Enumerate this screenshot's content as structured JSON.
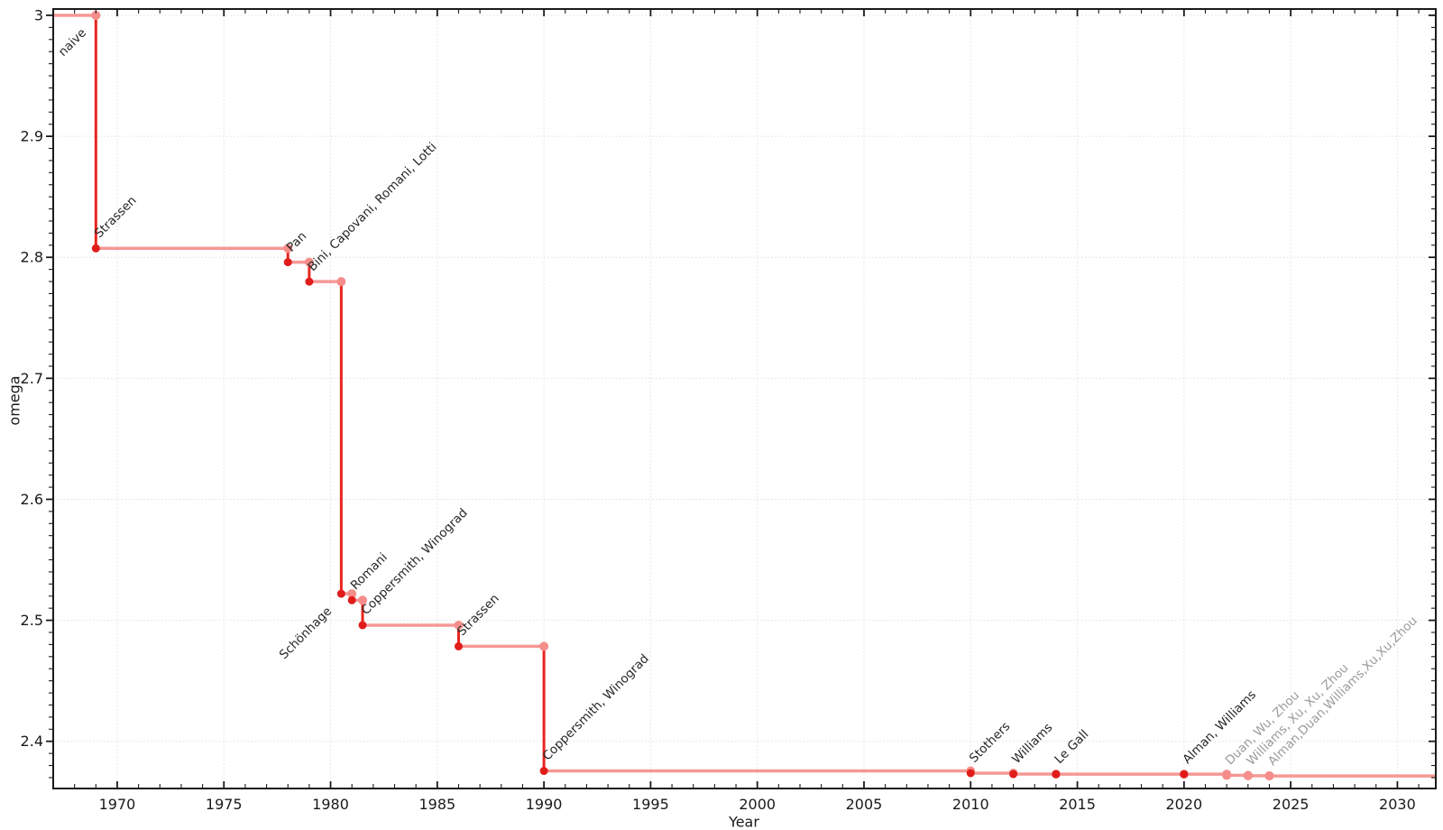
{
  "chart_data": {
    "type": "line",
    "subtype": "step",
    "title": "",
    "xlabel": "Year",
    "ylabel": "omega",
    "xlim": [
      1967,
      2031.8
    ],
    "ylim": [
      2.361,
      3.0052
    ],
    "grid": {
      "show": true,
      "style": "dotted",
      "which": "major",
      "color": "#e0e0e0"
    },
    "legend": "none",
    "x_major_ticks": [
      1970,
      1975,
      1980,
      1985,
      1990,
      1995,
      2000,
      2005,
      2010,
      2015,
      2020,
      2025,
      2030
    ],
    "x_tick_labels": [
      "1970",
      "1975",
      "1980",
      "1985",
      "1990",
      "1995",
      "2000",
      "2005",
      "2010",
      "2015",
      "2020",
      "2025",
      "2030"
    ],
    "x_minor_step": 1,
    "y_major_ticks": [
      2.4,
      2.5,
      2.6,
      2.7,
      2.8,
      2.9,
      3
    ],
    "y_tick_labels": [
      "2.4",
      "2.5",
      "2.6",
      "2.7",
      "2.8",
      "2.9",
      "3"
    ],
    "y_minor_step": 0.01,
    "colors": {
      "step_vertical": "#e8261f",
      "step_horizontal": "#f59895",
      "marker_dark": "#e01d1a",
      "marker_light": "#f58e8b",
      "label_dark": "#262626",
      "label_gray": "#9b9b9b",
      "axis": "#1a1a1a",
      "grid": "#e0e0e0"
    },
    "start": {
      "year": 1967,
      "omega": 3.0
    },
    "events": [
      {
        "label": "naive",
        "year": 1969,
        "omega": 3.0,
        "marker": "light",
        "label_pos": "below",
        "label_color": "dark"
      },
      {
        "label": "Strassen",
        "year": 1969,
        "omega": 2.8074,
        "marker": "dark",
        "label_pos": "above",
        "label_color": "dark"
      },
      {
        "label": "Pan",
        "year": 1978,
        "omega": 2.796,
        "marker": "dark",
        "label_pos": "above",
        "label_color": "dark"
      },
      {
        "label": "Bini, Capovani, Romani, Lotti",
        "year": 1979,
        "omega": 2.7799,
        "marker": "dark",
        "label_pos": "above",
        "label_color": "dark"
      },
      {
        "label": "Schönhage",
        "year": 1980.5,
        "omega": 2.522,
        "marker": "dark",
        "label_pos": "below",
        "label_color": "dark"
      },
      {
        "label": "Romani",
        "year": 1981,
        "omega": 2.5166,
        "marker": "dark",
        "label_pos": "above",
        "label_color": "dark"
      },
      {
        "label": "Coppersmith, Winograd",
        "year": 1981.5,
        "omega": 2.496,
        "marker": "dark",
        "label_pos": "above",
        "label_color": "dark"
      },
      {
        "label": "Strassen",
        "year": 1986,
        "omega": 2.4785,
        "marker": "dark",
        "label_pos": "above",
        "label_color": "dark"
      },
      {
        "label": "Coppersmith, Winograd",
        "year": 1990,
        "omega": 2.3755,
        "marker": "dark",
        "label_pos": "above",
        "label_color": "dark"
      },
      {
        "label": "Stothers",
        "year": 2010,
        "omega": 2.3737,
        "marker": "dark",
        "label_pos": "above",
        "label_color": "dark"
      },
      {
        "label": "Williams",
        "year": 2012,
        "omega": 2.3729,
        "marker": "dark",
        "label_pos": "above",
        "label_color": "dark"
      },
      {
        "label": "Le Gall",
        "year": 2014,
        "omega": 2.3728639,
        "marker": "dark",
        "label_pos": "above",
        "label_color": "dark"
      },
      {
        "label": "Alman, Williams",
        "year": 2020,
        "omega": 2.3728596,
        "marker": "dark",
        "label_pos": "above",
        "label_color": "dark"
      },
      {
        "label": "Duan, Wu, Zhou",
        "year": 2022,
        "omega": 2.371866,
        "marker": "light",
        "label_pos": "above",
        "label_color": "gray"
      },
      {
        "label": "Williams, Xu, Xu, Zhou",
        "year": 2023,
        "omega": 2.371552,
        "marker": "light",
        "label_pos": "above",
        "label_color": "gray"
      },
      {
        "label": "Alman,Duan,Williams,Xu,Xu,Zhou",
        "year": 2024,
        "omega": 2.371339,
        "marker": "light",
        "label_pos": "above",
        "label_color": "gray"
      }
    ]
  }
}
